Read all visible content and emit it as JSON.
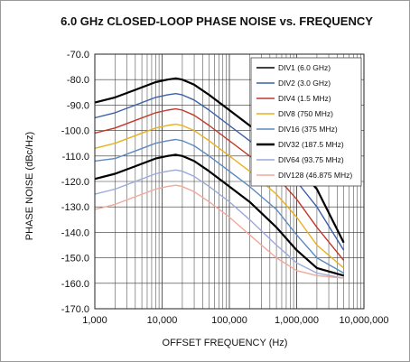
{
  "chart_data": {
    "type": "line",
    "title": "6.0 GHz CLOSED-LOOP PHASE NOISE vs. FREQUENCY",
    "xlabel": "OFFSET FREQUENCY (Hz)",
    "ylabel": "PHASE NOISE (dBc/Hz)",
    "x_scale": "log",
    "xlim": [
      1000,
      10000000
    ],
    "ylim": [
      -170,
      -70
    ],
    "grid": true,
    "legend_position": "top-right",
    "x_tick_labels": [
      "1,000",
      "10,000",
      "100,000",
      "1,000,000",
      "10,000,000"
    ],
    "y_tick_labels": [
      "-70.0",
      "-80.0",
      "-90.0",
      "-100.0",
      "-110.0",
      "-120.0",
      "-130.0",
      "-140.0",
      "-150.0",
      "-160.0",
      "-170.0"
    ],
    "x": [
      1000,
      2000,
      4000,
      8000,
      12000,
      16000,
      20000,
      30000,
      50000,
      100000,
      200000,
      500000,
      1000000,
      2000000,
      5000000
    ],
    "series": [
      {
        "name": "DIV1 (6.0 GHz)",
        "color": "#000000",
        "values": [
          -89,
          -87,
          -84,
          -81,
          -80,
          -79.5,
          -80,
          -82,
          -86,
          -92,
          -98,
          -106,
          -114,
          -123,
          -144
        ]
      },
      {
        "name": "DIV2 (3.0 GHz)",
        "color": "#3a5fa8",
        "values": [
          -95,
          -93,
          -90,
          -87,
          -86,
          -85.5,
          -86,
          -88,
          -92,
          -98,
          -104,
          -112,
          -120,
          -130,
          -147
        ]
      },
      {
        "name": "DIV4 (1.5 MHz)",
        "color": "#c0392b",
        "values": [
          -101,
          -99,
          -96,
          -93,
          -92,
          -91.5,
          -92,
          -94,
          -98,
          -104,
          -110,
          -118,
          -127,
          -138,
          -151
        ]
      },
      {
        "name": "DIV8 (750 MHz)",
        "color": "#e8b020",
        "values": [
          -107,
          -105,
          -102,
          -99,
          -98,
          -97.5,
          -98,
          -100,
          -104,
          -110,
          -116,
          -125,
          -134,
          -145,
          -154
        ]
      },
      {
        "name": "DIV16 (375 MHz)",
        "color": "#5a8ac0",
        "values": [
          -112,
          -111,
          -108,
          -105,
          -104,
          -103.5,
          -104,
          -106,
          -110,
          -116,
          -122,
          -131,
          -141,
          -150,
          -156
        ]
      },
      {
        "name": "DIV32 (187.5 MHz)",
        "color": "#000000",
        "values": [
          -119,
          -117,
          -114,
          -111,
          -110,
          -109.5,
          -110,
          -112,
          -116,
          -122,
          -128,
          -138,
          -147,
          -154,
          -157
        ]
      },
      {
        "name": "DIV64 (93.75 MHz)",
        "color": "#9aaad8",
        "values": [
          -125,
          -123,
          -120,
          -117,
          -116,
          -115.5,
          -116,
          -118,
          -122,
          -128,
          -135,
          -145,
          -152,
          -156,
          -158
        ]
      },
      {
        "name": "DIV128 (46.875 MHz)",
        "color": "#f0a898",
        "values": [
          -131,
          -129,
          -126,
          -123,
          -122,
          -121.5,
          -122,
          -124,
          -128,
          -134,
          -141,
          -150,
          -155,
          -157,
          -158
        ]
      }
    ]
  }
}
